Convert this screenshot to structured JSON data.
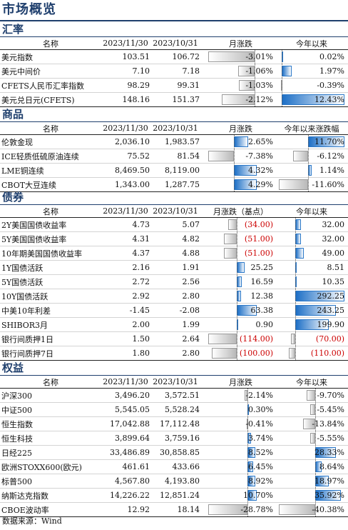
{
  "title": "市场概览",
  "source": "数据来源：Wind",
  "sections": [
    {
      "key": "fx",
      "title": "汇率",
      "headers": [
        "名称",
        "2023/11/30",
        "2023/10/31",
        "月涨跌",
        "今年以来"
      ],
      "rows": [
        {
          "name": "美元指数",
          "a": "103.51",
          "b": "106.72",
          "m": "-3.01%",
          "mv": -3.01,
          "y": "0.02%",
          "yv": 0.02
        },
        {
          "name": "美元中间价",
          "a": "7.10",
          "b": "7.18",
          "m": "-1.06%",
          "mv": -1.06,
          "y": "1.97%",
          "yv": 1.97
        },
        {
          "name": "CFETS人民币汇率指数",
          "a": "98.29",
          "b": "99.31",
          "m": "-1.03%",
          "mv": -1.03,
          "y": "-0.39%",
          "yv": -0.39
        },
        {
          "name": "美元兑日元(CFETS)",
          "a": "148.16",
          "b": "151.37",
          "m": "-2.12%",
          "mv": -2.12,
          "y": "12.43%",
          "yv": 12.43
        }
      ]
    },
    {
      "key": "commodity",
      "title": "商品",
      "headers": [
        "名称",
        "2023/11/30",
        "2023/10/31",
        "月涨跌",
        "今年以来涨跌幅"
      ],
      "rows": [
        {
          "name": "伦敦金现",
          "a": "2,036.10",
          "b": "1,983.57",
          "m": "2.65%",
          "mv": 2.65,
          "y": "11.70%",
          "yv": 11.7
        },
        {
          "name": "ICE轻质低硫原油连续",
          "a": "75.52",
          "b": "81.54",
          "m": "-7.38%",
          "mv": -7.38,
          "y": "-6.12%",
          "yv": -6.12
        },
        {
          "name": "LME铜连续",
          "a": "8,469.50",
          "b": "8,119.00",
          "m": "4.32%",
          "mv": 4.32,
          "y": "1.14%",
          "yv": 1.14
        },
        {
          "name": "CBOT大豆连续",
          "a": "1,343.00",
          "b": "1,287.75",
          "m": "4.29%",
          "mv": 4.29,
          "y": "-11.60%",
          "yv": -11.6
        }
      ]
    },
    {
      "key": "bond",
      "title": "债券",
      "headers": [
        "名称",
        "2023/11/30",
        "2023/10/31",
        "月涨跌（基点）",
        "今年以来"
      ],
      "rows": [
        {
          "name": "2Y美国国债收益率",
          "a": "4.73",
          "b": "5.07",
          "m": "(34.00)",
          "mv": -34.0,
          "y": "32.00",
          "yv": 32.0
        },
        {
          "name": "5Y美国国债收益率",
          "a": "4.31",
          "b": "4.82",
          "m": "(51.00)",
          "mv": -51.0,
          "y": "32.00",
          "yv": 32.0
        },
        {
          "name": "10年期美国国债收益率",
          "a": "4.37",
          "b": "4.88",
          "m": "(51.00)",
          "mv": -51.0,
          "y": "49.00",
          "yv": 49.0
        },
        {
          "name": "1Y国债活跃",
          "a": "2.16",
          "b": "1.91",
          "m": "25.25",
          "mv": 25.25,
          "y": "8.51",
          "yv": 8.51
        },
        {
          "name": "5Y国债活跃",
          "a": "2.72",
          "b": "2.56",
          "m": "16.59",
          "mv": 16.59,
          "y": "10.35",
          "yv": 10.35
        },
        {
          "name": "10Y国债活跃",
          "a": "2.92",
          "b": "2.80",
          "m": "12.38",
          "mv": 12.38,
          "y": "292.25",
          "yv": 292.25
        },
        {
          "name": "中美10年利差",
          "a": "-1.45",
          "b": "-2.08",
          "m": "63.38",
          "mv": 63.38,
          "y": "243.25",
          "yv": 243.25
        },
        {
          "name": "SHIBOR3月",
          "a": "2.00",
          "b": "1.99",
          "m": "0.90",
          "mv": 0.9,
          "y": "199.90",
          "yv": 199.9
        },
        {
          "name": "银行间质押1日",
          "a": "1.50",
          "b": "2.64",
          "m": "(114.00)",
          "mv": -114.0,
          "y": "(70.00)",
          "yv": -70.0
        },
        {
          "name": "银行间质押7日",
          "a": "1.80",
          "b": "2.80",
          "m": "(100.00)",
          "mv": -100.0,
          "y": "(110.00)",
          "yv": -110.0
        }
      ]
    },
    {
      "key": "equity",
      "title": "权益",
      "headers": [
        "名称",
        "2023/11/30",
        "2023/10/31",
        "月涨跌",
        "今年以来"
      ],
      "rows": [
        {
          "name": "沪深300",
          "a": "3,496.20",
          "b": "3,572.51",
          "m": "-2.14%",
          "mv": -2.14,
          "y": "-9.70%",
          "yv": -9.7
        },
        {
          "name": "中证500",
          "a": "5,545.05",
          "b": "5,528.24",
          "m": "0.30%",
          "mv": 0.3,
          "y": "-5.45%",
          "yv": -5.45
        },
        {
          "name": "恒生指数",
          "a": "17,042.88",
          "b": "17,112.48",
          "m": "-0.41%",
          "mv": -0.41,
          "y": "-13.84%",
          "yv": -13.84
        },
        {
          "name": "恒生科技",
          "a": "3,899.64",
          "b": "3,759.16",
          "m": "3.74%",
          "mv": 3.74,
          "y": "-5.55%",
          "yv": -5.55
        },
        {
          "name": "日经225",
          "a": "33,486.89",
          "b": "30,858.85",
          "m": "8.52%",
          "mv": 8.52,
          "y": "28.33%",
          "yv": 28.33
        },
        {
          "name": "欧洲STOXX600(欧元)",
          "a": "461.61",
          "b": "433.66",
          "m": "6.45%",
          "mv": 6.45,
          "y": "8.64%",
          "yv": 8.64
        },
        {
          "name": "标普500",
          "a": "4,567.80",
          "b": "4,193.80",
          "m": "8.92%",
          "mv": 8.92,
          "y": "18.97%",
          "yv": 18.97
        },
        {
          "name": "纳斯达克指数",
          "a": "14,226.22",
          "b": "12,851.24",
          "m": "10.70%",
          "mv": 10.7,
          "y": "35.92%",
          "yv": 35.92
        },
        {
          "name": "CBOE波动率",
          "a": "12.92",
          "b": "18.14",
          "m": "-28.78%",
          "mv": -28.78,
          "y": "-40.38%",
          "yv": -40.38
        }
      ]
    }
  ]
}
